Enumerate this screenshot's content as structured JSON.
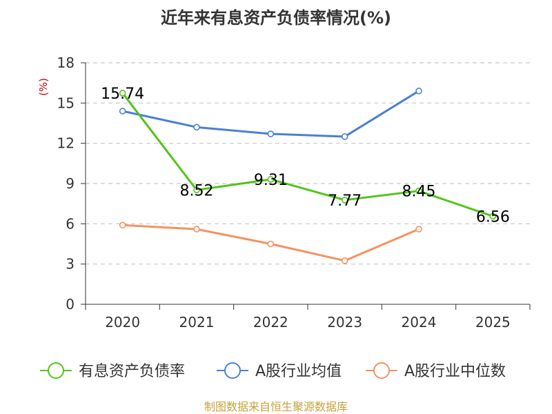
{
  "chart_data": {
    "type": "line",
    "title": "近年来有息资产负债率情况(%)",
    "ylabel": "(%)",
    "categories": [
      "2020",
      "2021",
      "2022",
      "2023",
      "2024",
      "2025"
    ],
    "ylim": [
      0,
      18
    ],
    "yticks": [
      0,
      3,
      6,
      9,
      12,
      15,
      18
    ],
    "grid": true,
    "legend_position": "bottom",
    "series": [
      {
        "name": "有息资产负债率",
        "color": "#52c41a",
        "values": [
          15.74,
          8.52,
          9.31,
          7.77,
          8.45,
          6.56
        ],
        "labels": [
          "15.74",
          "8.52",
          "9.31",
          "7.77",
          "8.45",
          "6.56"
        ]
      },
      {
        "name": "A股行业均值",
        "color": "#4a7fd6",
        "values": [
          14.4,
          13.2,
          12.7,
          12.5,
          15.9,
          null
        ]
      },
      {
        "name": "A股行业中位数",
        "color": "#f59160",
        "values": [
          5.9,
          5.6,
          4.5,
          3.25,
          5.6,
          null
        ]
      }
    ]
  },
  "footer": {
    "source": "制图数据来自恒生聚源数据库"
  }
}
